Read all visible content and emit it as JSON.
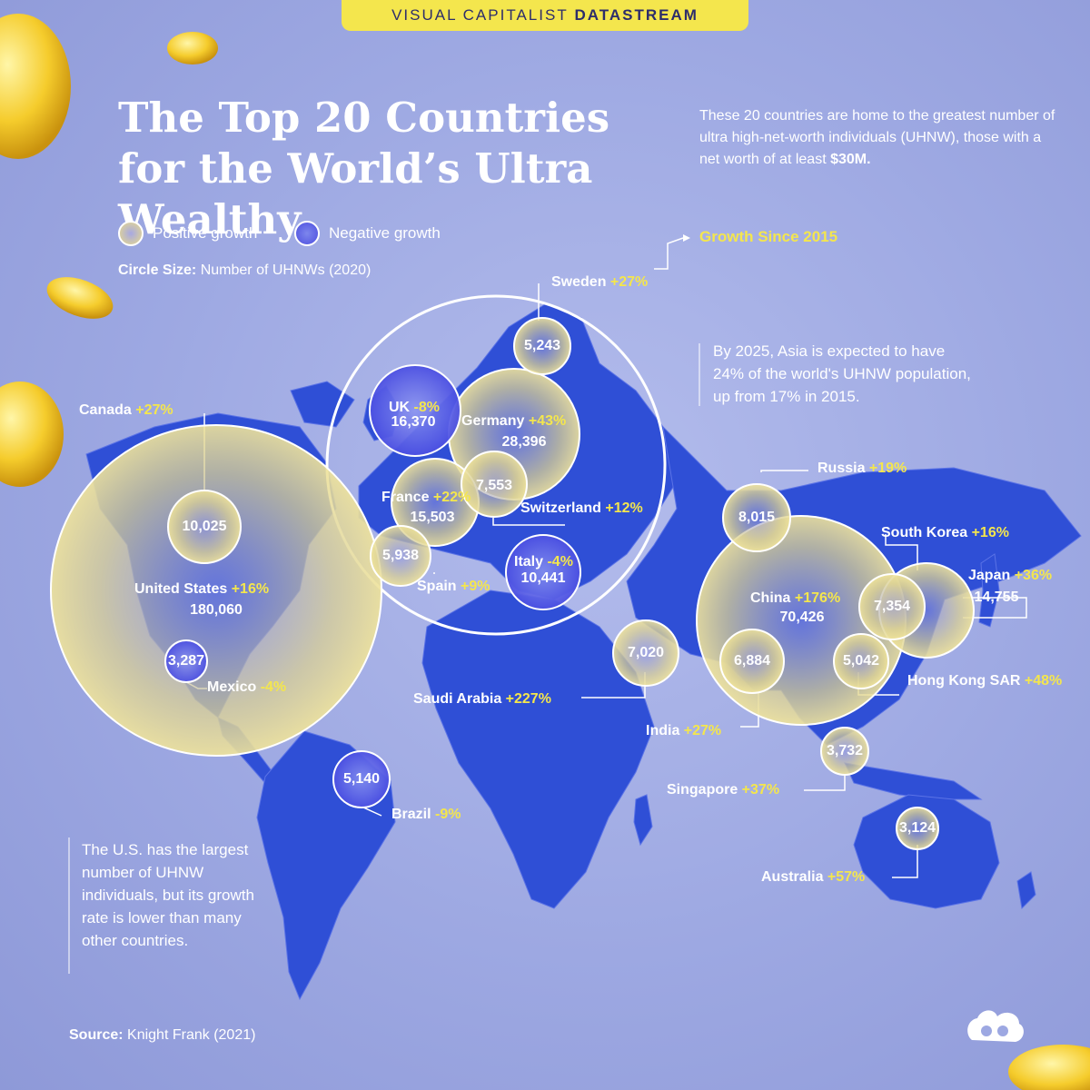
{
  "banner": {
    "brand": "VISUAL CAPITALIST",
    "product": "DATASTREAM"
  },
  "title": "The Top 20 Countries for the World’s Ultra Wealthy",
  "intro": {
    "text": "These 20 countries are home to the greatest number of ultra high-net-worth individuals (UHNW), those with a net worth of at least",
    "highlight": "$30M."
  },
  "legend": {
    "positive": "Positive growth",
    "negative": "Negative growth",
    "circle_size_label": "Circle Size:",
    "circle_size_desc": "Number of UHNWs (2020)",
    "growth_since": "Growth Since 2015"
  },
  "notes": {
    "asia": "By 2025, Asia is expected to have 24% of the world's UHNW population, up from 17% in 2015.",
    "us": "The U.S. has the largest number of UHNW individuals, but its growth rate is lower than many other countries."
  },
  "source": {
    "label": "Source:",
    "text": "Knight Frank (2021)"
  },
  "colors": {
    "land": "#2f4fd6",
    "positive_fill": "#e9db8a",
    "negative_fill": "#4f54e4",
    "accent": "#f4e64d",
    "background": "#9da8e2"
  },
  "countries": [
    {
      "name": "United States",
      "growth": "+16%",
      "value": "180,060"
    },
    {
      "name": "China",
      "growth": "+176%",
      "value": "70,426"
    },
    {
      "name": "Germany",
      "growth": "+43%",
      "value": "28,396"
    },
    {
      "name": "UK",
      "growth": "-8%",
      "value": "16,370"
    },
    {
      "name": "France",
      "growth": "+22%",
      "value": "15,503"
    },
    {
      "name": "Japan",
      "growth": "+36%",
      "value": "14,755"
    },
    {
      "name": "Italy",
      "growth": "-4%",
      "value": "10,441"
    },
    {
      "name": "Canada",
      "growth": "+27%",
      "value": "10,025"
    },
    {
      "name": "Russia",
      "growth": "+19%",
      "value": "8,015"
    },
    {
      "name": "Switzerland",
      "growth": "+12%",
      "value": "7,553"
    },
    {
      "name": "South Korea",
      "growth": "+16%",
      "value": "7,354"
    },
    {
      "name": "Saudi Arabia",
      "growth": "+227%",
      "value": "7,020"
    },
    {
      "name": "India",
      "growth": "+27%",
      "value": "6,884"
    },
    {
      "name": "Spain",
      "growth": "+9%",
      "value": "5,938"
    },
    {
      "name": "Sweden",
      "growth": "+27%",
      "value": "5,243"
    },
    {
      "name": "Brazil",
      "growth": "-9%",
      "value": "5,140"
    },
    {
      "name": "Hong Kong SAR",
      "growth": "+48%",
      "value": "5,042"
    },
    {
      "name": "Singapore",
      "growth": "+37%",
      "value": "3,732"
    },
    {
      "name": "Mexico",
      "growth": "-4%",
      "value": "3,287"
    },
    {
      "name": "Australia",
      "growth": "+57%",
      "value": "3,124"
    }
  ]
}
